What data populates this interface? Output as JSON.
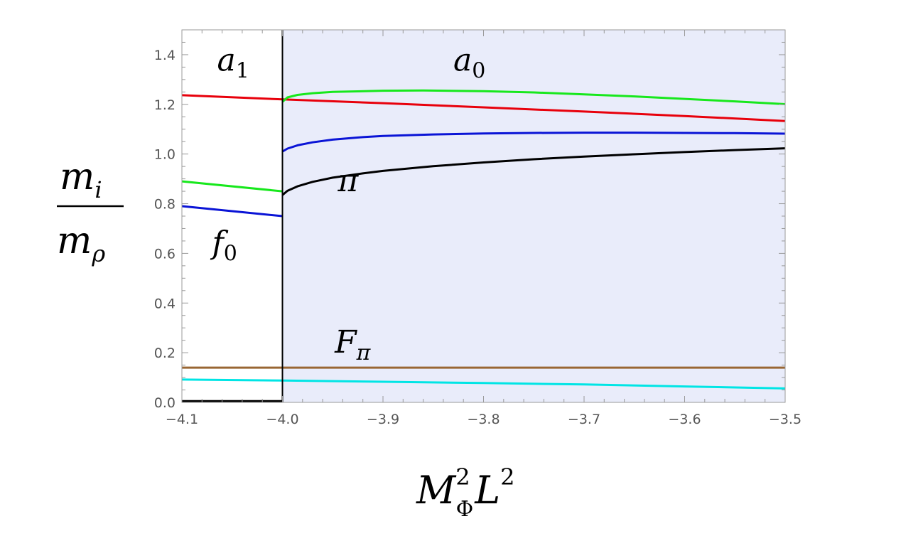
{
  "chart_data": {
    "type": "line",
    "xlabel": {
      "base": "M",
      "sup": "2",
      "sub": "Φ",
      "tail": "L",
      "tail_sup": "2"
    },
    "ylabel": {
      "num_base": "m",
      "num_sub": "i",
      "den_base": "m",
      "den_sub": "ρ"
    },
    "xlim": [
      -4.1,
      -3.5
    ],
    "ylim": [
      0.0,
      1.5
    ],
    "xticks": [
      -4.1,
      -4.0,
      -3.9,
      -3.8,
      -3.7,
      -3.6,
      -3.5
    ],
    "xtick_labels": [
      "−4.1",
      "−4.0",
      "−3.9",
      "−3.8",
      "−3.7",
      "−3.6",
      "−3.5"
    ],
    "yticks": [
      0.0,
      0.2,
      0.4,
      0.6,
      0.8,
      1.0,
      1.2,
      1.4
    ],
    "ytick_labels": [
      "0.0",
      "0.2",
      "0.4",
      "0.6",
      "0.8",
      "1.0",
      "1.2",
      "1.4"
    ],
    "grid": false,
    "shaded_region": {
      "x": [
        -4.0,
        -3.5
      ],
      "color": "#e9ecfa"
    },
    "vertical_line": {
      "x": -4.0,
      "color": "#000000"
    },
    "annotations": [
      {
        "id": "a1",
        "base": "a",
        "sub": "1",
        "x": -4.065,
        "y": 1.335
      },
      {
        "id": "a0",
        "base": "a",
        "sub": "0",
        "x": -3.83,
        "y": 1.335
      },
      {
        "id": "pi",
        "base": "π",
        "sub": "",
        "x": -3.945,
        "y": 0.85
      },
      {
        "id": "f0",
        "base": "f",
        "sub": "0",
        "x": -4.07,
        "y": 0.6
      },
      {
        "id": "Fpi",
        "base": "F",
        "sub": "π",
        "x": -3.948,
        "y": 0.2
      }
    ],
    "series": [
      {
        "key": "red",
        "color": "#e8000b",
        "x": [
          -4.1,
          -4.0,
          -3.9,
          -3.8,
          -3.7,
          -3.6,
          -3.5
        ],
        "y": [
          1.237,
          1.22,
          1.205,
          1.188,
          1.171,
          1.153,
          1.133
        ]
      },
      {
        "key": "green-left",
        "color": "#17e81c",
        "x": [
          -4.1,
          -4.0
        ],
        "y": [
          0.89,
          0.85
        ]
      },
      {
        "key": "blue-left",
        "color": "#0a14d6",
        "x": [
          -4.1,
          -4.0
        ],
        "y": [
          0.79,
          0.75
        ]
      },
      {
        "key": "black-left",
        "color": "#000000",
        "x": [
          -4.1,
          -4.0
        ],
        "y": [
          0.005,
          0.005
        ]
      },
      {
        "key": "green-right",
        "color": "#17e81c",
        "x": [
          -4.0,
          -3.995,
          -3.985,
          -3.97,
          -3.95,
          -3.9,
          -3.86,
          -3.8,
          -3.75,
          -3.7,
          -3.65,
          -3.6,
          -3.55,
          -3.5
        ],
        "y": [
          1.21,
          1.228,
          1.238,
          1.245,
          1.25,
          1.255,
          1.256,
          1.253,
          1.248,
          1.24,
          1.232,
          1.222,
          1.212,
          1.201
        ]
      },
      {
        "key": "blue-right",
        "color": "#0a14d6",
        "x": [
          -4.0,
          -3.995,
          -3.985,
          -3.97,
          -3.95,
          -3.92,
          -3.9,
          -3.85,
          -3.8,
          -3.75,
          -3.7,
          -3.65,
          -3.6,
          -3.55,
          -3.5
        ],
        "y": [
          1.01,
          1.022,
          1.035,
          1.047,
          1.058,
          1.068,
          1.073,
          1.079,
          1.083,
          1.085,
          1.086,
          1.086,
          1.085,
          1.084,
          1.082
        ]
      },
      {
        "key": "black-right",
        "color": "#000000",
        "x": [
          -4.0,
          -3.995,
          -3.985,
          -3.97,
          -3.95,
          -3.92,
          -3.9,
          -3.85,
          -3.8,
          -3.75,
          -3.7,
          -3.65,
          -3.6,
          -3.55,
          -3.5
        ],
        "y": [
          0.835,
          0.852,
          0.87,
          0.888,
          0.905,
          0.922,
          0.932,
          0.951,
          0.966,
          0.979,
          0.99,
          0.999,
          1.008,
          1.016,
          1.023
        ]
      },
      {
        "key": "brown",
        "color": "#996633",
        "x": [
          -4.1,
          -3.5
        ],
        "y": [
          0.14,
          0.14
        ]
      },
      {
        "key": "cyan",
        "color": "#00e5e5",
        "x": [
          -4.1,
          -4.0,
          -3.9,
          -3.8,
          -3.7,
          -3.6,
          -3.5
        ],
        "y": [
          0.092,
          0.088,
          0.083,
          0.078,
          0.072,
          0.064,
          0.056
        ]
      }
    ]
  }
}
